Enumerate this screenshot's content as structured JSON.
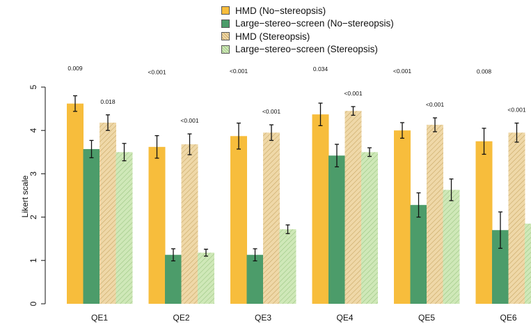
{
  "chart_data": {
    "type": "bar",
    "ylabel": "Likert scale",
    "ylim": [
      0,
      5
    ],
    "yticks": [
      0,
      1,
      2,
      3,
      4,
      5
    ],
    "categories": [
      "QE1",
      "QE2",
      "QE3",
      "QE4",
      "QE5",
      "QE6"
    ],
    "legend_position": "top",
    "series": [
      {
        "name": "HMD (No−stereopsis)",
        "color": "#f7bd3c",
        "pattern": "solid",
        "values": [
          4.62,
          3.62,
          3.87,
          4.37,
          4.0,
          3.75
        ],
        "errors": [
          0.18,
          0.26,
          0.3,
          0.26,
          0.18,
          0.3
        ]
      },
      {
        "name": "Large−stereo−screen (No−stereopsis)",
        "color": "#4c9c6a",
        "pattern": "solid",
        "values": [
          3.57,
          1.13,
          1.13,
          3.42,
          2.28,
          1.7
        ],
        "errors": [
          0.2,
          0.14,
          0.14,
          0.26,
          0.28,
          0.42
        ]
      },
      {
        "name": "HMD (Stereopsis)",
        "color": "#efd8a8",
        "pattern": "hatched",
        "values": [
          4.18,
          3.68,
          3.95,
          4.45,
          4.13,
          3.95
        ],
        "errors": [
          0.18,
          0.24,
          0.18,
          0.1,
          0.16,
          0.22
        ]
      },
      {
        "name": "Large−stereo−screen (Stereopsis)",
        "color": "#cfe8b8",
        "pattern": "hatched",
        "values": [
          3.5,
          1.18,
          1.72,
          3.5,
          2.63,
          1.85
        ],
        "errors": [
          0.2,
          0.08,
          0.1,
          0.1,
          0.25,
          0.25
        ]
      }
    ],
    "annotations": [
      {
        "category": "QE1",
        "series": 0,
        "text": "0.009"
      },
      {
        "category": "QE1",
        "series": 2,
        "text": "0.018"
      },
      {
        "category": "QE2",
        "series": 0,
        "text": "<0.001"
      },
      {
        "category": "QE2",
        "series": 2,
        "text": "<0.001"
      },
      {
        "category": "QE3",
        "series": 0,
        "text": "<0.001"
      },
      {
        "category": "QE3",
        "series": 2,
        "text": "<0.001"
      },
      {
        "category": "QE4",
        "series": 0,
        "text": "0.034"
      },
      {
        "category": "QE4",
        "series": 2,
        "text": "<0.001"
      },
      {
        "category": "QE5",
        "series": 0,
        "text": "<0.001"
      },
      {
        "category": "QE5",
        "series": 2,
        "text": "<0.001"
      },
      {
        "category": "QE6",
        "series": 0,
        "text": "0.008"
      },
      {
        "category": "QE6",
        "series": 2,
        "text": "<0.001"
      }
    ]
  }
}
